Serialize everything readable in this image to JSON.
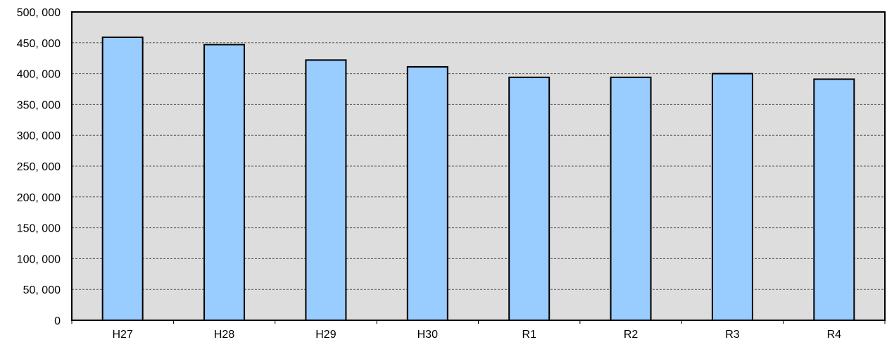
{
  "chart_data": {
    "type": "bar",
    "categories": [
      "H27",
      "H28",
      "H29",
      "H30",
      "R1",
      "R2",
      "R3",
      "R4"
    ],
    "values": [
      459000,
      447000,
      422000,
      411000,
      394000,
      394000,
      400000,
      391000
    ],
    "ylim": [
      0,
      500000
    ],
    "y_ticks": [
      "0",
      "50, 000",
      "100, 000",
      "150, 000",
      "200, 000",
      "250, 000",
      "300, 000",
      "350, 000",
      "400, 000",
      "450, 000",
      "500, 000"
    ],
    "grid": true,
    "legend": "none",
    "colors": {
      "bar_fill": "#99ccff",
      "bar_stroke": "#000000",
      "plot_background": "#dddddd",
      "gridline": "#555555"
    }
  }
}
